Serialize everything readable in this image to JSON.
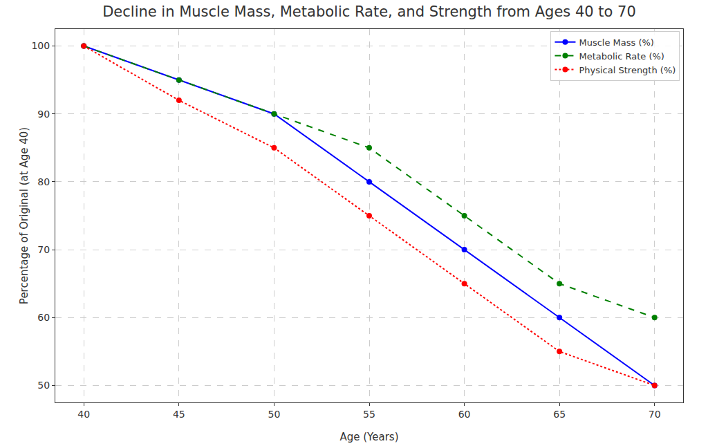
{
  "chart_data": {
    "type": "line",
    "title": "Decline in Muscle Mass, Metabolic Rate, and Strength from Ages 40 to 70",
    "x_label": "Age (Years)",
    "y_label": "Percentage of Original (at Age 40)",
    "x": [
      40,
      45,
      50,
      55,
      60,
      65,
      70
    ],
    "series": [
      {
        "name": "Muscle Mass (%)",
        "color": "#0000ff",
        "marker": "circle",
        "line_style": "solid",
        "values": [
          100,
          95,
          90,
          80,
          70,
          60,
          50
        ]
      },
      {
        "name": "Metabolic Rate (%)",
        "color": "#008000",
        "marker": "circle",
        "line_style": "dashed",
        "values": [
          100,
          95,
          90,
          85,
          75,
          65,
          60
        ]
      },
      {
        "name": "Physical Strength (%)",
        "color": "#ff0000",
        "marker": "circle",
        "line_style": "dotted",
        "values": [
          100,
          92,
          85,
          75,
          65,
          55,
          50
        ]
      }
    ],
    "xlim": [
      38.5,
      71.5
    ],
    "xticks": [
      40,
      45,
      50,
      55,
      60,
      65,
      70
    ],
    "ylim": [
      47.5,
      102.5
    ],
    "yticks": [
      50,
      60,
      70,
      80,
      90,
      100
    ],
    "grid": true,
    "legend": "upper right"
  }
}
